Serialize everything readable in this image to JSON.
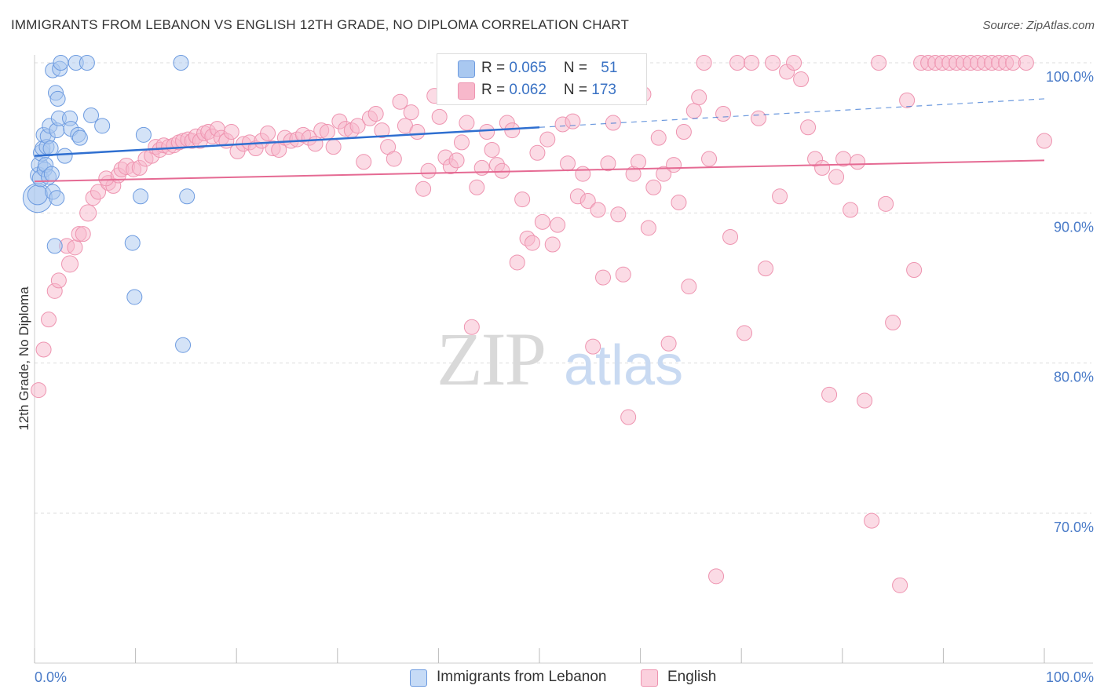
{
  "title": "IMMIGRANTS FROM LEBANON VS ENGLISH 12TH GRADE, NO DIPLOMA CORRELATION CHART",
  "source": "Source: ZipAtlas.com",
  "watermark": {
    "zip": "ZIP",
    "atlas": "atlas"
  },
  "legend": {
    "series1": {
      "r_label": "R = ",
      "r_value": "0.065",
      "n_label": "N = ",
      "n_value": "51"
    },
    "series2": {
      "r_label": "R = ",
      "r_value": "0.062",
      "n_label": "N = ",
      "n_value": "173"
    }
  },
  "bottom_legend": {
    "series1": "Immigrants from Lebanon",
    "series2": "English"
  },
  "colors": {
    "blue_fill": "#a9c8f0",
    "blue_stroke": "#6d9be0",
    "blue_line": "#2f6fd0",
    "pink_fill": "#f7b8cb",
    "pink_stroke": "#ee94b0",
    "pink_line": "#e56a93",
    "tick_text": "#4a7bc8",
    "grid": "#dddddd"
  },
  "chart_data": {
    "type": "scatter",
    "xlabel": "",
    "ylabel": "12th Grade, No Diploma",
    "xlim": [
      0,
      100
    ],
    "ylim": [
      60,
      100
    ],
    "x_tick_labels": [
      {
        "value": 0,
        "label": "0.0%"
      },
      {
        "value": 100,
        "label": "100.0%"
      }
    ],
    "y_tick_labels": [
      {
        "value": 100,
        "label": "100.0%"
      },
      {
        "value": 90,
        "label": "90.0%"
      },
      {
        "value": 80,
        "label": "80.0%"
      },
      {
        "value": 70,
        "label": "70.0%"
      }
    ],
    "series": [
      {
        "name": "Immigrants from Lebanon",
        "trend": {
          "x0": 0,
          "y0": 93.8,
          "x1": 50,
          "y1": 95.7,
          "dashed_to_x": 100,
          "dashed_to_y": 97.6
        },
        "points": [
          [
            0.3,
            91.0,
            18
          ],
          [
            0.3,
            91.2,
            12
          ],
          [
            0.4,
            92.5,
            10
          ],
          [
            0.5,
            93.2,
            10
          ],
          [
            0.6,
            92.3,
            10
          ],
          [
            0.7,
            94.0,
            10
          ],
          [
            0.8,
            94.3,
            9
          ],
          [
            0.9,
            95.2,
            9
          ],
          [
            1.0,
            92.9,
            9
          ],
          [
            1.1,
            93.2,
            9
          ],
          [
            1.2,
            94.4,
            9
          ],
          [
            1.3,
            95.1,
            9
          ],
          [
            1.4,
            92.4,
            9
          ],
          [
            1.5,
            95.8,
            9
          ],
          [
            1.6,
            94.3,
            9
          ],
          [
            1.7,
            92.6,
            9
          ],
          [
            1.8,
            91.4,
            9
          ],
          [
            1.8,
            99.5,
            9
          ],
          [
            2.0,
            87.8,
            9
          ],
          [
            2.1,
            98.0,
            9
          ],
          [
            2.2,
            91.0,
            9
          ],
          [
            2.2,
            95.5,
            9
          ],
          [
            2.3,
            97.6,
            9
          ],
          [
            2.4,
            96.3,
            9
          ],
          [
            2.5,
            99.6,
            9
          ],
          [
            2.6,
            100.0,
            9
          ],
          [
            3.0,
            93.8,
            9
          ],
          [
            3.5,
            96.3,
            9
          ],
          [
            3.6,
            95.6,
            9
          ],
          [
            4.1,
            100.0,
            9
          ],
          [
            4.3,
            95.2,
            9
          ],
          [
            4.5,
            95.0,
            9
          ],
          [
            5.2,
            100.0,
            9
          ],
          [
            5.6,
            96.5,
            9
          ],
          [
            6.7,
            95.8,
            9
          ],
          [
            9.7,
            88.0,
            9
          ],
          [
            9.9,
            84.4,
            9
          ],
          [
            10.5,
            91.1,
            9
          ],
          [
            10.8,
            95.2,
            9
          ],
          [
            14.5,
            100.0,
            9
          ],
          [
            14.7,
            81.2,
            9
          ],
          [
            15.1,
            91.1,
            9
          ]
        ]
      },
      {
        "name": "English",
        "trend": {
          "x0": 0,
          "y0": 92.1,
          "x1": 100,
          "y1": 93.5
        },
        "points": [
          [
            0.4,
            78.2,
            9
          ],
          [
            0.9,
            80.9,
            9
          ],
          [
            1.4,
            82.9,
            9
          ],
          [
            2.0,
            84.8,
            9
          ],
          [
            2.4,
            85.5,
            9
          ],
          [
            3.5,
            86.6,
            10
          ],
          [
            3.2,
            87.8,
            9
          ],
          [
            4.0,
            87.7,
            9
          ],
          [
            4.4,
            88.6,
            9
          ],
          [
            4.8,
            88.6,
            9
          ],
          [
            5.3,
            90.0,
            10
          ],
          [
            5.8,
            91.0,
            9
          ],
          [
            6.3,
            91.4,
            9
          ],
          [
            7.3,
            92.0,
            9
          ],
          [
            7.8,
            91.8,
            9
          ],
          [
            7.1,
            92.3,
            9
          ],
          [
            8.3,
            92.5,
            9
          ],
          [
            8.6,
            92.9,
            9
          ],
          [
            9.1,
            93.1,
            10
          ],
          [
            9.8,
            92.9,
            9
          ],
          [
            10.4,
            93.0,
            9
          ],
          [
            11.0,
            93.6,
            9
          ],
          [
            11.6,
            93.8,
            9
          ],
          [
            12.0,
            94.4,
            9
          ],
          [
            12.4,
            94.2,
            9
          ],
          [
            12.8,
            94.5,
            9
          ],
          [
            13.3,
            94.4,
            9
          ],
          [
            13.8,
            94.5,
            9
          ],
          [
            14.3,
            94.7,
            9
          ],
          [
            14.7,
            94.8,
            9
          ],
          [
            15.2,
            94.9,
            9
          ],
          [
            15.6,
            94.8,
            9
          ],
          [
            16.0,
            95.1,
            9
          ],
          [
            16.4,
            94.8,
            9
          ],
          [
            16.8,
            95.3,
            9
          ],
          [
            17.2,
            95.4,
            9
          ],
          [
            17.6,
            95.1,
            9
          ],
          [
            18.1,
            95.6,
            9
          ],
          [
            18.5,
            95.0,
            9
          ],
          [
            19.0,
            94.8,
            9
          ],
          [
            19.5,
            95.4,
            9
          ],
          [
            20.1,
            94.1,
            9
          ],
          [
            20.7,
            94.6,
            9
          ],
          [
            21.3,
            94.7,
            9
          ],
          [
            21.9,
            94.3,
            9
          ],
          [
            22.5,
            94.8,
            9
          ],
          [
            23.1,
            95.3,
            9
          ],
          [
            23.6,
            94.3,
            9
          ],
          [
            24.2,
            94.2,
            9
          ],
          [
            24.8,
            95.0,
            9
          ],
          [
            25.4,
            94.8,
            9
          ],
          [
            26.0,
            94.9,
            9
          ],
          [
            26.6,
            95.2,
            9
          ],
          [
            27.2,
            95.0,
            9
          ],
          [
            27.8,
            94.6,
            9
          ],
          [
            28.4,
            95.5,
            9
          ],
          [
            29.0,
            95.4,
            9
          ],
          [
            29.6,
            94.4,
            9
          ],
          [
            30.2,
            96.1,
            9
          ],
          [
            30.8,
            95.6,
            9
          ],
          [
            31.4,
            95.5,
            9
          ],
          [
            32.0,
            95.8,
            9
          ],
          [
            32.6,
            93.4,
            9
          ],
          [
            33.2,
            96.3,
            9
          ],
          [
            33.8,
            96.6,
            9
          ],
          [
            34.4,
            95.5,
            9
          ],
          [
            35.0,
            94.4,
            9
          ],
          [
            35.6,
            93.6,
            9
          ],
          [
            36.2,
            97.4,
            9
          ],
          [
            36.7,
            95.8,
            9
          ],
          [
            37.3,
            96.7,
            9
          ],
          [
            37.9,
            95.4,
            9
          ],
          [
            38.5,
            91.6,
            9
          ],
          [
            39.0,
            92.8,
            9
          ],
          [
            39.6,
            97.8,
            9
          ],
          [
            40.1,
            96.4,
            9
          ],
          [
            40.7,
            93.7,
            9
          ],
          [
            41.2,
            93.1,
            9
          ],
          [
            41.8,
            93.5,
            9
          ],
          [
            42.3,
            94.7,
            9
          ],
          [
            42.8,
            96.0,
            9
          ],
          [
            43.3,
            82.4,
            9
          ],
          [
            43.8,
            91.7,
            9
          ],
          [
            44.3,
            93.0,
            9
          ],
          [
            44.8,
            95.4,
            9
          ],
          [
            45.3,
            94.2,
            9
          ],
          [
            45.8,
            93.2,
            9
          ],
          [
            46.3,
            92.8,
            9
          ],
          [
            46.8,
            96.0,
            9
          ],
          [
            47.3,
            95.5,
            9
          ],
          [
            47.8,
            86.7,
            9
          ],
          [
            48.3,
            90.9,
            9
          ],
          [
            48.8,
            88.3,
            9
          ],
          [
            49.3,
            88.0,
            9
          ],
          [
            49.8,
            94.0,
            9
          ],
          [
            50.3,
            89.4,
            9
          ],
          [
            50.8,
            94.9,
            9
          ],
          [
            51.3,
            87.9,
            9
          ],
          [
            51.8,
            89.2,
            9
          ],
          [
            52.3,
            95.9,
            9
          ],
          [
            52.8,
            93.3,
            9
          ],
          [
            53.3,
            96.1,
            9
          ],
          [
            53.8,
            91.1,
            9
          ],
          [
            54.3,
            92.6,
            9
          ],
          [
            54.8,
            90.8,
            9
          ],
          [
            55.3,
            81.1,
            9
          ],
          [
            55.8,
            90.2,
            9
          ],
          [
            56.3,
            85.7,
            9
          ],
          [
            56.8,
            93.3,
            9
          ],
          [
            57.3,
            96.0,
            9
          ],
          [
            57.8,
            89.9,
            9
          ],
          [
            58.3,
            85.9,
            9
          ],
          [
            58.8,
            76.4,
            9
          ],
          [
            59.3,
            92.6,
            9
          ],
          [
            59.8,
            93.4,
            9
          ],
          [
            60.3,
            97.9,
            9
          ],
          [
            60.8,
            89.0,
            9
          ],
          [
            61.3,
            91.7,
            9
          ],
          [
            61.8,
            95.0,
            9
          ],
          [
            62.3,
            92.6,
            9
          ],
          [
            62.8,
            81.3,
            9
          ],
          [
            63.3,
            93.2,
            9
          ],
          [
            63.8,
            90.7,
            9
          ],
          [
            64.3,
            95.4,
            9
          ],
          [
            64.8,
            85.1,
            9
          ],
          [
            65.3,
            96.8,
            9
          ],
          [
            65.8,
            97.7,
            9
          ],
          [
            66.3,
            100.0,
            9
          ],
          [
            66.8,
            93.6,
            9
          ],
          [
            67.5,
            65.8,
            9
          ],
          [
            68.2,
            96.6,
            9
          ],
          [
            68.9,
            88.4,
            9
          ],
          [
            69.6,
            100.0,
            9
          ],
          [
            70.3,
            82.0,
            9
          ],
          [
            71.0,
            100.0,
            9
          ],
          [
            71.7,
            96.3,
            9
          ],
          [
            72.4,
            86.3,
            9
          ],
          [
            73.1,
            100.0,
            9
          ],
          [
            73.8,
            91.1,
            9
          ],
          [
            74.5,
            99.4,
            9
          ],
          [
            75.2,
            100.0,
            9
          ],
          [
            75.9,
            98.9,
            9
          ],
          [
            76.6,
            95.7,
            9
          ],
          [
            77.3,
            93.6,
            9
          ],
          [
            78.0,
            93.0,
            9
          ],
          [
            78.7,
            77.9,
            9
          ],
          [
            79.4,
            92.4,
            9
          ],
          [
            80.1,
            93.6,
            9
          ],
          [
            80.8,
            90.2,
            9
          ],
          [
            81.5,
            93.4,
            9
          ],
          [
            82.2,
            77.5,
            9
          ],
          [
            82.9,
            69.5,
            9
          ],
          [
            83.6,
            100.0,
            9
          ],
          [
            84.3,
            90.6,
            9
          ],
          [
            85.0,
            82.7,
            9
          ],
          [
            85.7,
            65.2,
            9
          ],
          [
            86.4,
            97.5,
            9
          ],
          [
            87.1,
            86.2,
            9
          ],
          [
            87.8,
            100.0,
            9
          ],
          [
            88.5,
            100.0,
            9
          ],
          [
            89.2,
            100.0,
            9
          ],
          [
            89.9,
            100.0,
            9
          ],
          [
            90.6,
            100.0,
            9
          ],
          [
            91.3,
            100.0,
            9
          ],
          [
            92.0,
            100.0,
            9
          ],
          [
            92.7,
            100.0,
            9
          ],
          [
            93.4,
            100.0,
            9
          ],
          [
            94.1,
            100.0,
            9
          ],
          [
            94.8,
            100.0,
            9
          ],
          [
            95.5,
            100.0,
            9
          ],
          [
            96.2,
            100.0,
            9
          ],
          [
            96.9,
            100.0,
            9
          ],
          [
            98.2,
            100.0,
            9
          ],
          [
            100.0,
            94.8,
            9
          ]
        ]
      }
    ]
  }
}
